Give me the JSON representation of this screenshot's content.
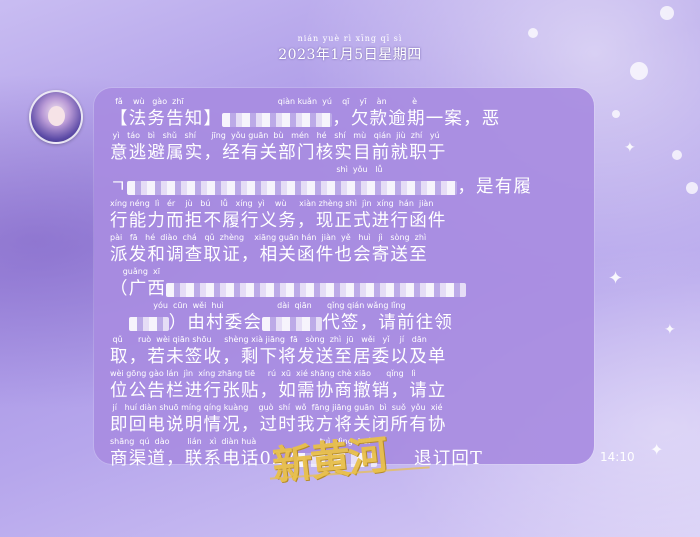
{
  "header": {
    "date_pinyin": "nián  yuè  rì  xīng  qī  sì",
    "date_text": "2023年1月5日星期四"
  },
  "message": {
    "lines": [
      {
        "py": "  fǎ    wù   gào  zhī                                     qiàn kuǎn  yú    qī    yī    àn          è",
        "tx": "【法务告知】",
        "blur": 110,
        "tx2": "，欠款逾期一案，恶"
      },
      {
        "py": " yì   táo   bì   shǔ   shí      jīng  yǒu guān  bù   mén   hé   shí   mù   qián  jiù  zhí   yú",
        "tx": "意逃避属实，经有关部门核实目前就职于"
      },
      {
        "py": "                                                                                         shì  yǒu   lǚ",
        "tx": "ㄱ",
        "blur": 330,
        "tx2": "，是有履"
      },
      {
        "py": "xíng néng  lì   ér    jù   bú    lǚ   xíng  yì    wù     xiàn zhèng shì  jìn  xíng  hán  jiàn",
        "tx": "行能力而拒不履行义务，现正式进行函件"
      },
      {
        "py": "pài   fā   hé  diào  chá   qǔ  zhèng    xiāng guān hán  jiàn  yě   huì   jì   sòng  zhì",
        "tx": "派发和调查取证，相关函件也会寄送至"
      },
      {
        "py": "     guǎng  xī",
        "tx": "（广西",
        "blur": 300
      },
      {
        "py": "                 yóu  cūn  wěi  huì                     dài  qiān      qǐng qián wǎng lǐng",
        "tx": "　",
        "blur": 40,
        "tx2": "）由村委会",
        "blur2": 60,
        "tx3": "代签，请前往领"
      },
      {
        "py": " qǔ      ruò  wèi qiān shōu     shèng xià jiāng  fā   sòng  zhì  jū   wěi   yǐ    jí   dān",
        "tx": "取，若未签收，剩下将发送至居委以及单"
      },
      {
        "py": "wèi gōng gào lán  jìn  xíng zhāng tiē     rú  xū  xié shāng chè xiāo      qǐng   lì",
        "tx": "位公告栏进行张贴，如需协商撤销，请立"
      },
      {
        "py": " jí   huí diàn shuō míng qíng kuàng    guò  shí  wǒ  fāng jiāng guān  bì  suǒ  yǒu  xié",
        "tx": "即回电说明情况，过时我方将关闭所有协"
      },
      {
        "py": "shāng  qú  dào       lián   xì  diàn huà                         tuì  dìng  huí",
        "tx": "商渠道，联系电话027",
        "blur": 80,
        "tx2": "　　退订回T"
      }
    ]
  },
  "time_stamp": "14:10",
  "watermark": "新黄河"
}
